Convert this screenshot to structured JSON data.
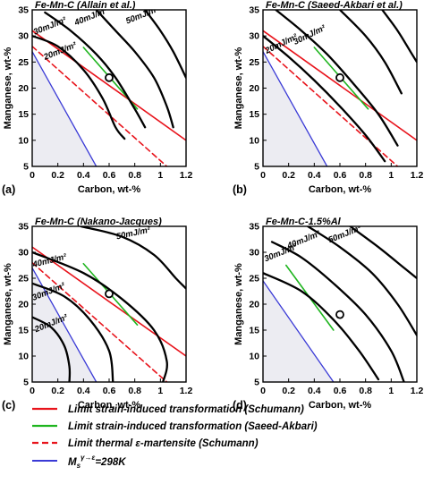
{
  "legend": {
    "items": [
      {
        "text": "Limit strain-induced transformation (Schumann)",
        "color": "#e8141c",
        "dash": false
      },
      {
        "text": "Limit strain-induced transformation (Saeed-Akbari)",
        "color": "#1fb51f",
        "dash": false
      },
      {
        "text": "Limit thermal ε-martensite (Schumann)",
        "color": "#e8141c",
        "dash": true
      },
      {
        "text_main": "M",
        "text_sub": "s",
        "text_sup": "γ→ε",
        "text_rest": "=298K",
        "color": "#3a3ad6",
        "dash": false
      }
    ]
  },
  "chart_data": [
    {
      "type": "line",
      "panel": "(a)",
      "title": "Fe-Mn-C (Allain et al.)",
      "xlabel": "Carbon, wt-%",
      "ylabel": "Manganese, wt-%",
      "xlim": [
        0,
        1.2
      ],
      "ylim": [
        5,
        35
      ],
      "xticks": [
        "0",
        "0.2",
        "0.4",
        "0.6",
        "0.8",
        "1",
        "1.2"
      ],
      "yticks": [
        "5",
        "10",
        "15",
        "20",
        "25",
        "30",
        "35"
      ],
      "grid": false,
      "marker": {
        "x": 0.6,
        "y": 22
      },
      "series": [
        {
          "name": "Limit strain-induced transformation (Schumann)",
          "style": "red",
          "points": [
            [
              0,
              31
            ],
            [
              1.2,
              10
            ]
          ]
        },
        {
          "name": "Limit strain-induced transformation (Saeed-Akbari)",
          "style": "green",
          "points": [
            [
              0.4,
              27.8
            ],
            [
              0.82,
              16
            ]
          ]
        },
        {
          "name": "Limit thermal ε-martensite (Schumann)",
          "style": "red-dashed",
          "points": [
            [
              0,
              28
            ],
            [
              1.05,
              5
            ]
          ]
        },
        {
          "name": "M_s γ→ε = 298K",
          "style": "blue",
          "points": [
            [
              0,
              27
            ],
            [
              0.5,
              5
            ]
          ]
        },
        {
          "name": "20mJ/m²",
          "style": "black",
          "points": [
            [
              0,
              30
            ],
            [
              0.2,
              28
            ],
            [
              0.4,
              23.5
            ],
            [
              0.55,
              18
            ],
            [
              0.65,
              12.5
            ],
            [
              0.72,
              10.3
            ]
          ]
        },
        {
          "name": "30mJ/m²",
          "style": "black",
          "points": [
            [
              0.1,
              34.5
            ],
            [
              0.3,
              31
            ],
            [
              0.5,
              26.5
            ],
            [
              0.65,
              22
            ],
            [
              0.8,
              16
            ],
            [
              0.88,
              12.5
            ]
          ]
        },
        {
          "name": "40mJ/m²",
          "style": "black",
          "points": [
            [
              0.5,
              35
            ],
            [
              0.65,
              31
            ],
            [
              0.8,
              27
            ],
            [
              0.95,
              22
            ],
            [
              1.05,
              16.5
            ],
            [
              1.1,
              12.5
            ]
          ]
        },
        {
          "name": "50mJ/m²",
          "style": "black",
          "points": [
            [
              0.88,
              35
            ],
            [
              1,
              31
            ],
            [
              1.1,
              27
            ],
            [
              1.2,
              22
            ]
          ]
        }
      ],
      "labels": [
        {
          "text": "20mJ/m²",
          "x": 0.1,
          "y": 25.4,
          "angle": 22
        },
        {
          "text": "30mJ/m²",
          "x": 0.02,
          "y": 30.2,
          "angle": 22
        },
        {
          "text": "40mJ/m²",
          "x": 0.34,
          "y": 32.0,
          "angle": 22
        },
        {
          "text": "50mJ/m²",
          "x": 0.74,
          "y": 32.3,
          "angle": 22
        }
      ]
    },
    {
      "type": "line",
      "panel": "(b)",
      "title": "Fe-Mn-C (Saeed-Akbari et al.)",
      "xlabel": "Carbon, wt-%",
      "ylabel": "Manganese, wt-%",
      "xlim": [
        0,
        1.2
      ],
      "ylim": [
        5,
        35
      ],
      "xticks": [
        "0",
        "0.2",
        "0.4",
        "0.6",
        "0.8",
        "1",
        "1.2"
      ],
      "yticks": [
        "5",
        "10",
        "15",
        "20",
        "25",
        "30",
        "35"
      ],
      "grid": false,
      "marker": {
        "x": 0.6,
        "y": 22
      },
      "series": [
        {
          "name": "Limit strain-induced transformation (Schumann)",
          "style": "red",
          "points": [
            [
              0,
              31
            ],
            [
              1.2,
              10
            ]
          ]
        },
        {
          "name": "Limit strain-induced transformation (Saeed-Akbari)",
          "style": "green",
          "points": [
            [
              0.4,
              27.8
            ],
            [
              0.82,
              16
            ]
          ]
        },
        {
          "name": "Limit thermal ε-martensite (Schumann)",
          "style": "red-dashed",
          "points": [
            [
              0,
              28
            ],
            [
              1.05,
              5
            ]
          ]
        },
        {
          "name": "M_s γ→ε = 298K",
          "style": "blue",
          "points": [
            [
              0,
              27
            ],
            [
              0.5,
              5
            ]
          ]
        },
        {
          "name": "20mJ/m²",
          "style": "black",
          "points": [
            [
              0,
              30
            ],
            [
              0.2,
              26
            ],
            [
              0.4,
              21.5
            ],
            [
              0.6,
              16.5
            ],
            [
              0.8,
              11
            ],
            [
              0.95,
              6
            ]
          ]
        },
        {
          "name": "30mJ/m²",
          "style": "black",
          "points": [
            [
              0.1,
              35
            ],
            [
              0.3,
              31
            ],
            [
              0.5,
              26.5
            ],
            [
              0.7,
              21
            ],
            [
              0.9,
              15
            ],
            [
              1.05,
              9
            ]
          ]
        },
        {
          "name": "40mJ/m²",
          "style": "black",
          "points": [
            [
              0.6,
              35
            ],
            [
              0.8,
              30
            ],
            [
              0.95,
              25
            ],
            [
              1.08,
              19
            ]
          ]
        },
        {
          "name": "50mJ/m²",
          "style": "black",
          "points": [
            [
              0.93,
              35
            ],
            [
              1.05,
              31
            ],
            [
              1.15,
              27
            ],
            [
              1.2,
              25
            ]
          ]
        }
      ],
      "labels": [
        {
          "text": "20mJ/m²",
          "x": 0.03,
          "y": 26.6,
          "angle": 26
        },
        {
          "text": "30mJ/m²",
          "x": 0.25,
          "y": 28.3,
          "angle": 26
        }
      ]
    },
    {
      "type": "line",
      "panel": "(c)",
      "title": "Fe-Mn-C (Nakano-Jacques)",
      "xlabel": "Carbon, wt-%",
      "ylabel": "Manganese, wt-%",
      "xlim": [
        0,
        1.2
      ],
      "ylim": [
        5,
        35
      ],
      "xticks": [
        "0",
        "0.2",
        "0.4",
        "0.6",
        "0.8",
        "1",
        "1.2"
      ],
      "yticks": [
        "5",
        "10",
        "15",
        "20",
        "25",
        "30",
        "35"
      ],
      "grid": false,
      "marker": {
        "x": 0.6,
        "y": 22
      },
      "series": [
        {
          "name": "Limit strain-induced transformation (Schumann)",
          "style": "red",
          "points": [
            [
              0,
              31
            ],
            [
              1.2,
              10
            ]
          ]
        },
        {
          "name": "Limit strain-induced transformation (Saeed-Akbari)",
          "style": "green",
          "points": [
            [
              0.4,
              27.8
            ],
            [
              0.82,
              16
            ]
          ]
        },
        {
          "name": "Limit thermal ε-martensite (Schumann)",
          "style": "red-dashed",
          "points": [
            [
              0,
              28
            ],
            [
              1.05,
              5
            ]
          ]
        },
        {
          "name": "M_s γ→ε = 298K",
          "style": "blue",
          "points": [
            [
              0,
              27
            ],
            [
              0.5,
              5
            ]
          ]
        },
        {
          "name": "20mJ/m²",
          "style": "black",
          "points": [
            [
              0,
              17.5
            ],
            [
              0.15,
              15.5
            ],
            [
              0.25,
              12
            ],
            [
              0.29,
              8
            ],
            [
              0.29,
              5
            ]
          ]
        },
        {
          "name": "30mJ/m²",
          "style": "black",
          "points": [
            [
              0,
              24
            ],
            [
              0.25,
              21.5
            ],
            [
              0.45,
              17
            ],
            [
              0.6,
              11
            ],
            [
              0.63,
              5
            ]
          ]
        },
        {
          "name": "40mJ/m²",
          "style": "black",
          "points": [
            [
              0,
              30
            ],
            [
              0.4,
              26
            ],
            [
              0.7,
              21
            ],
            [
              0.95,
              15
            ],
            [
              1.05,
              9
            ],
            [
              1.02,
              5
            ]
          ]
        },
        {
          "name": "50mJ/m²",
          "style": "black",
          "points": [
            [
              0.38,
              35
            ],
            [
              0.7,
              33
            ],
            [
              0.95,
              29.5
            ],
            [
              1.12,
              25
            ],
            [
              1.2,
              23
            ]
          ]
        }
      ],
      "labels": [
        {
          "text": "20mJ/m²",
          "x": 0.03,
          "y": 14.6,
          "angle": 22
        },
        {
          "text": "30mJ/m²",
          "x": 0.01,
          "y": 20.7,
          "angle": 22
        },
        {
          "text": "40mJ/m²",
          "x": 0.01,
          "y": 27.1,
          "angle": 14
        },
        {
          "text": "50mJ/m²",
          "x": 0.66,
          "y": 32.5,
          "angle": 12
        }
      ]
    },
    {
      "type": "line",
      "panel": "(d)",
      "title": "Fe-Mn-C-1.5%Al",
      "xlabel": "Carbon, wt-%",
      "ylabel": "Manganese, wt-%",
      "xlim": [
        0,
        1.2
      ],
      "ylim": [
        5,
        35
      ],
      "xticks": [
        "0",
        "0.2",
        "0.4",
        "0.6",
        "0.8",
        "1",
        "1.2"
      ],
      "yticks": [
        "5",
        "10",
        "15",
        "20",
        "25",
        "30",
        "35"
      ],
      "grid": false,
      "marker": {
        "x": 0.6,
        "y": 18
      },
      "series": [
        {
          "name": "Limit strain-induced transformation (Saeed-Akbari)",
          "style": "green",
          "points": [
            [
              0.18,
              27.5
            ],
            [
              0.55,
              15
            ]
          ]
        },
        {
          "name": "M_s γ→ε = 298K",
          "style": "blue",
          "points": [
            [
              0,
              24.5
            ],
            [
              0.55,
              5
            ]
          ]
        },
        {
          "name": "20mJ/m²",
          "style": "black",
          "points": [
            [
              0,
              26
            ],
            [
              0.3,
              22.5
            ],
            [
              0.55,
              17
            ],
            [
              0.75,
              11
            ],
            [
              0.9,
              5.5
            ]
          ]
        },
        {
          "name": "30mJ/m²",
          "style": "black",
          "points": [
            [
              0.07,
              32
            ],
            [
              0.3,
              29
            ],
            [
              0.55,
              24
            ],
            [
              0.8,
              18
            ],
            [
              1.0,
              11
            ],
            [
              1.1,
              5
            ]
          ]
        },
        {
          "name": "40mJ/m²",
          "style": "black",
          "points": [
            [
              0.35,
              35
            ],
            [
              0.6,
              31
            ],
            [
              0.85,
              26
            ],
            [
              1.05,
              20
            ],
            [
              1.2,
              14
            ]
          ]
        },
        {
          "name": "50mJ/m²",
          "style": "black",
          "points": [
            [
              0.68,
              35
            ],
            [
              0.9,
              31
            ],
            [
              1.1,
              27
            ],
            [
              1.2,
              25
            ]
          ]
        }
      ],
      "labels": [
        {
          "text": "30mJ/m²",
          "x": 0.02,
          "y": 28.2,
          "angle": 22
        },
        {
          "text": "40mJ/m²",
          "x": 0.2,
          "y": 30.7,
          "angle": 22
        },
        {
          "text": "50mJ/m²",
          "x": 0.52,
          "y": 31.8,
          "angle": 22
        }
      ]
    }
  ]
}
